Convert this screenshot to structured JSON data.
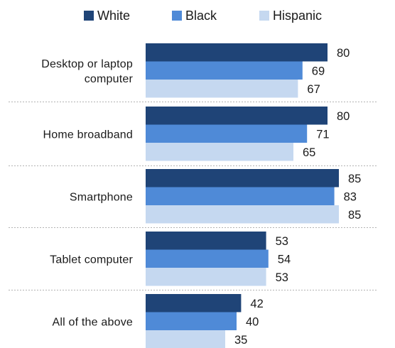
{
  "chart_data": {
    "type": "bar",
    "orientation": "horizontal",
    "categories": [
      [
        "Desktop or laptop",
        "computer"
      ],
      [
        "Home broadband"
      ],
      [
        "Smartphone"
      ],
      [
        "Tablet computer"
      ],
      [
        "All of the above"
      ]
    ],
    "series": [
      {
        "name": "White",
        "color": "#1f4477",
        "values": [
          80,
          80,
          85,
          53,
          42
        ]
      },
      {
        "name": "Black",
        "color": "#4f8ad7",
        "values": [
          69,
          71,
          83,
          54,
          40
        ]
      },
      {
        "name": "Hispanic",
        "color": "#c5d8f0",
        "values": [
          67,
          65,
          85,
          53,
          35
        ]
      }
    ],
    "title": "",
    "xlabel": "",
    "ylabel": "",
    "legend_position": "top",
    "grid": false,
    "category_separators": "dotted"
  }
}
